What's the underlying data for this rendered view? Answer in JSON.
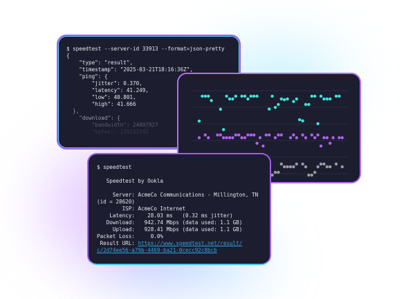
{
  "json_terminal": {
    "lines": [
      "$ speedtest --server-id 33913 --format=json-pretty",
      "{",
      "    \"type\": \"result\",",
      "    \"timestamp\": \"2025-03-21T18:16:36Z\",",
      "    \"ping\": {",
      "        \"jitter\": 0.370,",
      "        \"latency\": 41.249,",
      "        \"low\": 40.801,",
      "        \"high\": 41.666",
      "  },",
      "    \"download\": {",
      "        \"bandwidth\": 24097927",
      "        \"bytes\": 239152592"
    ]
  },
  "dot_plot": {
    "colors": [
      "#3ee6d8",
      "#b060f0",
      "#9a9aa0"
    ]
  },
  "text_terminal": {
    "command": "$ speedtest",
    "title": "   Speedtest by Ookla",
    "server": "     Server: AcmeCo Communications - Millington, TN",
    "server_id": "(id = 28620)",
    "isp": "        ISP: AcmeCo Internet",
    "latency": "    Latency:    28.03 ms   (0.32 ms jitter)",
    "download": "   Download:   942.74 Mbps (data used: 1.1 GB)",
    "upload": "     Upload:   928.41 Mbps (data used: 1.1 GB)",
    "packet_loss": "Packet Loss:     0.0%",
    "result_label": " Result URL: ",
    "result_url_1": "https://www.speedtest.net/result/",
    "result_url_2": "c/2d74ee56-a79b-4469-ba21-0cecc92c8bcb"
  }
}
